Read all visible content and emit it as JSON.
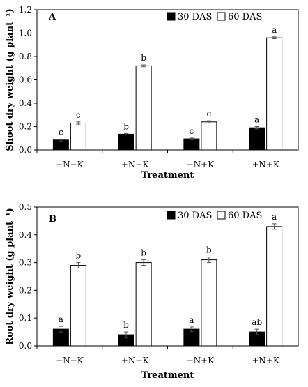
{
  "chart_data": [
    {
      "type": "bar",
      "panel_label": "A",
      "categories": [
        "−N−K",
        "+N−K",
        "−N+K",
        "+N+K"
      ],
      "series": [
        {
          "name": "30 DAS",
          "color": "#000000",
          "values": [
            0.085,
            0.135,
            0.095,
            0.19
          ],
          "errors": [
            0.008,
            0.006,
            0.007,
            0.01
          ],
          "letters": [
            "c",
            "b",
            "c",
            "a"
          ]
        },
        {
          "name": "60 DAS",
          "color": "#ffffff",
          "values": [
            0.23,
            0.72,
            0.24,
            0.96
          ],
          "errors": [
            0.01,
            0.008,
            0.01,
            0.008
          ],
          "letters": [
            "c",
            "b",
            "c",
            "a"
          ]
        }
      ],
      "xlabel": "Treatment",
      "ylabel": "Shoot dry weight (g plant⁻¹)",
      "ylim": [
        0,
        1.2
      ],
      "yticks": [
        "0.0",
        "0.2",
        "0.4",
        "0.6",
        "0.8",
        "1.0",
        "1.2"
      ],
      "legend_position": "top-right",
      "grid": false
    },
    {
      "type": "bar",
      "panel_label": "B",
      "categories": [
        "−N−K",
        "+N−K",
        "−N+K",
        "+N+K"
      ],
      "series": [
        {
          "name": "30 DAS",
          "color": "#000000",
          "values": [
            0.06,
            0.04,
            0.06,
            0.05
          ],
          "errors": [
            0.01,
            0.01,
            0.008,
            0.01
          ],
          "letters": [
            "a",
            "b",
            "a",
            "ab"
          ]
        },
        {
          "name": "60 DAS",
          "color": "#ffffff",
          "values": [
            0.29,
            0.3,
            0.31,
            0.43
          ],
          "errors": [
            0.01,
            0.01,
            0.01,
            0.01
          ],
          "letters": [
            "b",
            "b",
            "b",
            "a"
          ]
        }
      ],
      "xlabel": "Treatment",
      "ylabel": "Root dry weight (g plant⁻¹)",
      "ylim": [
        0,
        0.5
      ],
      "yticks": [
        "0.0",
        "0.1",
        "0.2",
        "0.3",
        "0.4",
        "0.5"
      ],
      "legend_position": "top-right",
      "grid": false
    }
  ]
}
